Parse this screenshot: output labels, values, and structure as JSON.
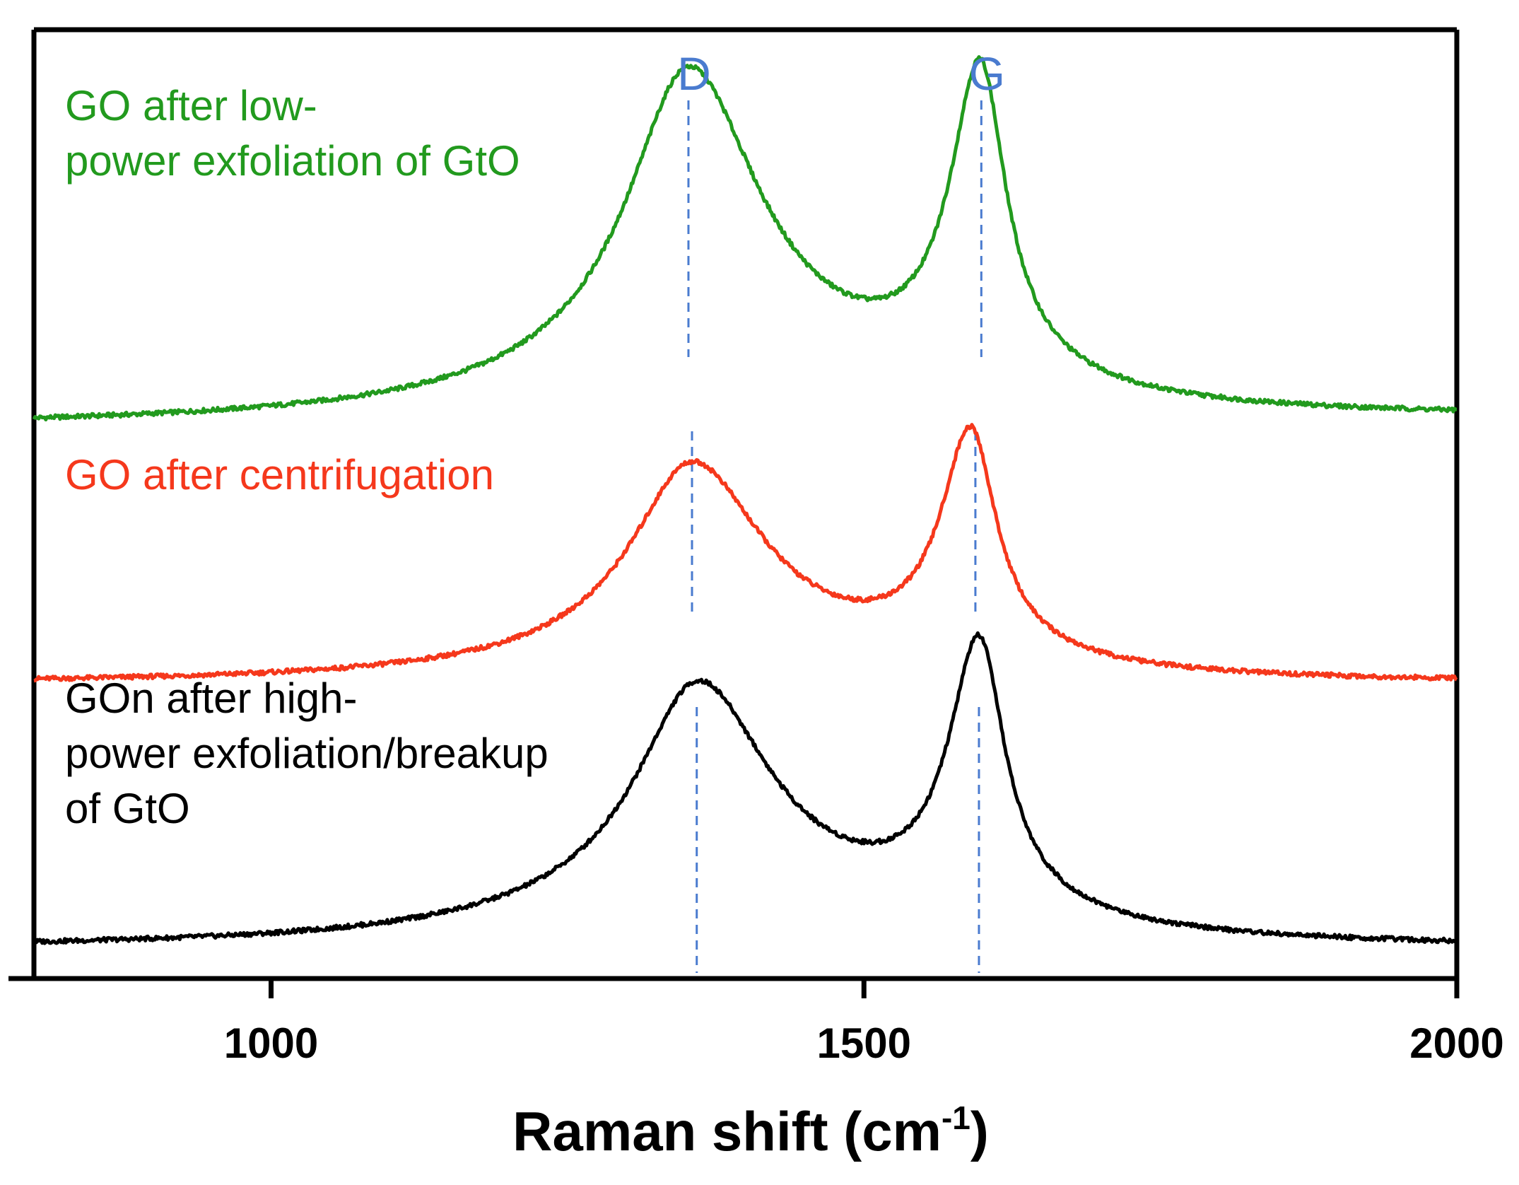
{
  "chart_data": {
    "type": "line",
    "title": "",
    "xlabel": "Raman shift (cm",
    "xlabel_sup": "-1",
    "xlabel_close": ")",
    "ylabel": "",
    "xlim": [
      800,
      2000
    ],
    "x_ticks": [
      {
        "value": 1000,
        "label": "1000"
      },
      {
        "value": 1500,
        "label": "1500"
      },
      {
        "value": 2000,
        "label": "2000"
      }
    ],
    "y_axis_visible": false,
    "grid": false,
    "peak_markers": [
      {
        "name": "D",
        "label": "D",
        "color": "#4a7bcf"
      },
      {
        "name": "G",
        "label": "G",
        "color": "#4a7bcf"
      }
    ],
    "series": [
      {
        "id": "green",
        "name": "GO after low-power exfoliation of GtO",
        "label_lines": [
          "GO after low-",
          "power exfoliation of GtO"
        ],
        "color": "#229a1e",
        "offset": 1.42,
        "baseline_left": 0.0,
        "baseline_right": 0.02,
        "peaks": [
          {
            "center": 1352,
            "height": 0.95,
            "hwhm_left": 62,
            "hwhm_right": 72,
            "gamma_tail": 175,
            "tail_amp": 0.13
          },
          {
            "center": 1598,
            "height": 0.88,
            "hwhm_left": 30,
            "hwhm_right": 26,
            "gamma_tail": 90,
            "tail_amp": 0.08
          }
        ],
        "d_line_x": 1352,
        "g_line_x": 1599,
        "x": [
          800,
          900,
          1000,
          1100,
          1200,
          1300,
          1352,
          1400,
          1470,
          1550,
          1598,
          1650,
          1700,
          1800,
          1900,
          2000
        ],
        "y": [
          0.0,
          0.02,
          0.04,
          0.08,
          0.16,
          0.52,
          0.95,
          0.62,
          0.36,
          0.58,
          0.95,
          0.2,
          0.09,
          0.06,
          0.03,
          0.02
        ]
      },
      {
        "id": "red",
        "name": "GO after centrifugation",
        "label_lines": [
          "GO after centrifugation"
        ],
        "color": "#f5381c",
        "offset": 0.72,
        "baseline_left": 0.0,
        "baseline_right": 0.0,
        "peaks": [
          {
            "center": 1355,
            "height": 0.59,
            "hwhm_left": 62,
            "hwhm_right": 72,
            "gamma_tail": 170,
            "tail_amp": 0.08
          },
          {
            "center": 1590,
            "height": 0.63,
            "hwhm_left": 30,
            "hwhm_right": 26,
            "gamma_tail": 90,
            "tail_amp": 0.05
          }
        ],
        "d_line_x": 1355,
        "g_line_x": 1594,
        "x": [
          800,
          900,
          1000,
          1100,
          1200,
          1300,
          1355,
          1400,
          1475,
          1550,
          1590,
          1650,
          1700,
          1800,
          1900,
          2000
        ],
        "y": [
          0.0,
          0.01,
          0.02,
          0.04,
          0.07,
          0.33,
          0.6,
          0.45,
          0.26,
          0.39,
          0.67,
          0.13,
          0.05,
          0.02,
          0.01,
          0.0
        ]
      },
      {
        "id": "black",
        "name": "GOn after high-power exfoliation/breakup of GtO",
        "label_lines": [
          "GOn after high-",
          "power exfoliation/breakup",
          "of GtO"
        ],
        "color": "#000000",
        "offset": 0.0,
        "baseline_left": 0.0,
        "baseline_right": 0.0,
        "peaks": [
          {
            "center": 1360,
            "height": 0.71,
            "hwhm_left": 62,
            "hwhm_right": 72,
            "gamma_tail": 170,
            "tail_amp": 0.13
          },
          {
            "center": 1597,
            "height": 0.76,
            "hwhm_left": 30,
            "hwhm_right": 26,
            "gamma_tail": 90,
            "tail_amp": 0.07
          }
        ],
        "d_line_x": 1359,
        "g_line_x": 1597,
        "x": [
          800,
          900,
          1000,
          1100,
          1200,
          1300,
          1360,
          1400,
          1475,
          1550,
          1597,
          1650,
          1700,
          1800,
          1900,
          2000
        ],
        "y": [
          0.0,
          0.01,
          0.03,
          0.06,
          0.13,
          0.45,
          0.73,
          0.56,
          0.3,
          0.46,
          0.8,
          0.17,
          0.06,
          0.03,
          0.01,
          0.0
        ]
      }
    ]
  }
}
